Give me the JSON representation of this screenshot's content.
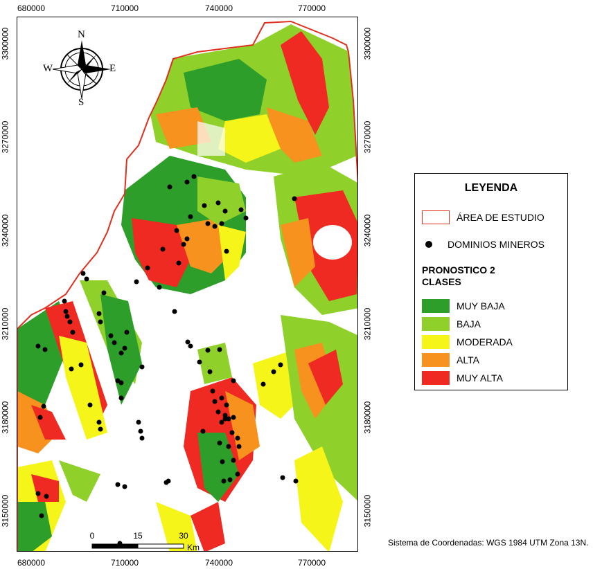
{
  "axes": {
    "top_ticks": [
      "680000",
      "710000",
      "740000",
      "770000"
    ],
    "bottom_ticks": [
      "680000",
      "710000",
      "740000",
      "770000"
    ],
    "left_ticks": [
      "3300000",
      "3270000",
      "3240000",
      "3210000",
      "3180000",
      "3150000"
    ],
    "right_ticks": [
      "3300000",
      "3270000",
      "3240000",
      "3210000",
      "3180000",
      "3150000"
    ]
  },
  "compass": {
    "n": "N",
    "s": "S",
    "e": "E",
    "w": "W",
    "icon": "compass-rose-icon"
  },
  "scalebar": {
    "labels": [
      "0",
      "15",
      "30"
    ],
    "unit": "Km"
  },
  "legend": {
    "title": "LEYENDA",
    "study_area": "ÁREA DE ESTUDIO",
    "mines": "DOMINIOS MINEROS",
    "forecast_title_line1": "PRONOSTICO 2",
    "forecast_title_line2": "CLASES",
    "classes": [
      {
        "label": "MUY BAJA",
        "color": "#2e9e2a"
      },
      {
        "label": "BAJA",
        "color": "#8fd12a"
      },
      {
        "label": "MODERADA",
        "color": "#f5f51a"
      },
      {
        "label": "ALTA",
        "color": "#f7921e"
      },
      {
        "label": "MUY ALTA",
        "color": "#ee2a22"
      }
    ],
    "study_area_color": "#e0301e"
  },
  "coordinate_system": "Sistema de Coordenadas: WGS 1984 UTM Zona 13N."
}
